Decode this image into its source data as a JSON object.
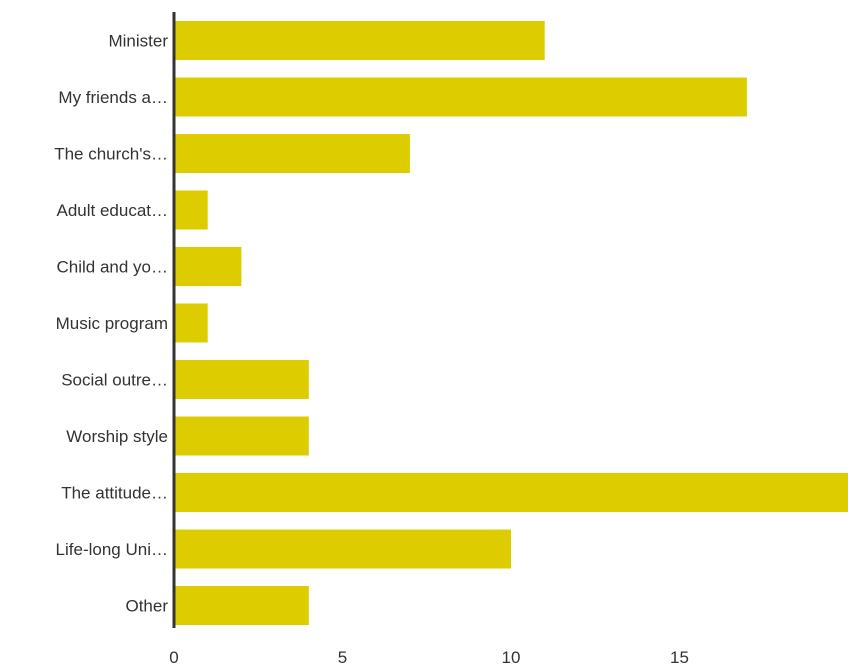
{
  "chart_data": {
    "type": "bar",
    "orientation": "horizontal",
    "categories": [
      "Minister",
      "My friends a…",
      "The church's…",
      "Adult educat…",
      "Child and yo…",
      "Music program",
      "Social outre…",
      "Worship style",
      "The attitude…",
      "Life-long Uni…",
      "Other"
    ],
    "values": [
      11,
      17,
      7,
      1,
      2,
      1,
      4,
      4,
      20,
      10,
      4
    ],
    "xlim": [
      0,
      20
    ],
    "xticks": [
      0,
      5,
      10,
      15
    ],
    "xtick_labels": [
      "0",
      "5",
      "10",
      "15"
    ],
    "title": "",
    "xlabel": "",
    "ylabel": "",
    "grid": false,
    "bar_color": "#dccc00",
    "axis_color": "#333333"
  }
}
